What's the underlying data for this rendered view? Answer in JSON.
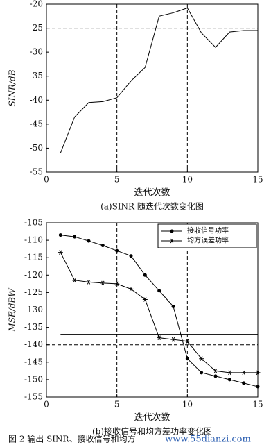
{
  "chart_data": [
    {
      "type": "line",
      "x": [
        1,
        2,
        3,
        4,
        5,
        6,
        7,
        8,
        9,
        10,
        11,
        12,
        13,
        14,
        15
      ],
      "values": [
        -51,
        -43.5,
        -40.5,
        -40.3,
        -39.5,
        -36,
        -33.2,
        -22.5,
        -21.8,
        -20.8,
        -26,
        -29,
        -25.8,
        -25.5,
        -25.5
      ],
      "color": "#000000",
      "xlim": [
        0,
        15
      ],
      "ylim": [
        -55,
        -20
      ],
      "xticks": [
        0,
        5,
        10,
        15
      ],
      "yticks": [
        -55,
        -50,
        -45,
        -40,
        -35,
        -30,
        -25,
        -20
      ],
      "xgrid": [
        5,
        10
      ],
      "ygrid": [
        -25
      ],
      "ylabel": "SINR/dB",
      "xlabel": "迭代次数",
      "caption": "(a)SINR 随迭代次数变化图"
    },
    {
      "type": "line",
      "x": [
        1,
        2,
        3,
        4,
        5,
        6,
        7,
        8,
        9,
        10,
        11,
        12,
        13,
        14,
        15
      ],
      "series": [
        {
          "name": "接收信号功率",
          "color": "#000000",
          "marker": "circle",
          "values": [
            -108.5,
            -109,
            -110.2,
            -111.5,
            -113,
            -114.5,
            -120,
            -124.5,
            -129,
            -144,
            -148,
            -149,
            -150,
            -151,
            -152
          ]
        },
        {
          "name": "均方误差功率",
          "color": "#000000",
          "marker": "star",
          "values": [
            -113.5,
            -121.5,
            -122,
            -122.3,
            -122.5,
            -124,
            -127,
            -138,
            -138.5,
            -139,
            -144,
            -147.5,
            -148,
            -148,
            -148
          ]
        }
      ],
      "xlim": [
        0,
        15
      ],
      "ylim": [
        -155,
        -105
      ],
      "xticks": [
        0,
        5,
        10,
        15
      ],
      "yticks": [
        -155,
        -150,
        -145,
        -140,
        -135,
        -130,
        -125,
        -120,
        -115,
        -110,
        -105
      ],
      "xgrid": [
        5,
        10
      ],
      "ygrid": [
        -140
      ],
      "reference_line": -137,
      "legend": "upper right",
      "ylabel": "MSE/dBW",
      "xlabel": "迭代次数",
      "caption": "(b)接收信号和均方差功率变化图"
    }
  ],
  "figure_caption": "图 2  输出 SINR、接收信号和均方",
  "watermark": "www.55dianzi.com"
}
